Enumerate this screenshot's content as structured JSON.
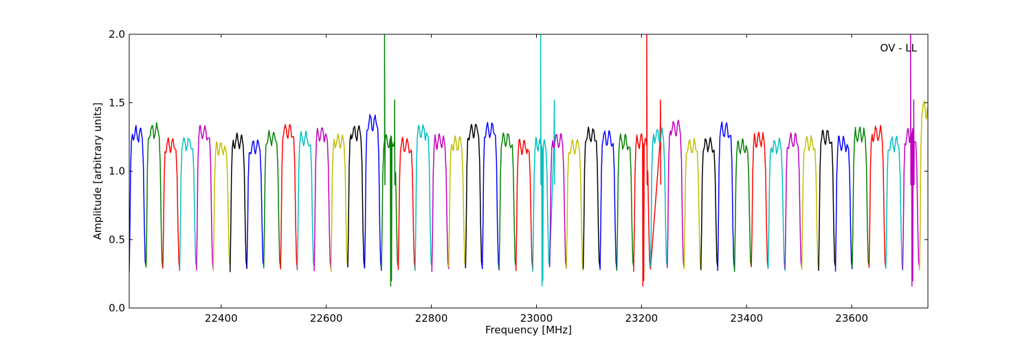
{
  "chart_data": {
    "type": "line",
    "title": "",
    "xlabel": "Frequency [MHz]",
    "ylabel": "Amplitude [arbitrary units]",
    "annotation": "OV - LL",
    "xlim": [
      22225,
      23745
    ],
    "ylim": [
      0.0,
      2.0
    ],
    "x_ticks": [
      22400,
      22600,
      22800,
      23000,
      23200,
      23400,
      23600
    ],
    "x_tick_labels": [
      "22400",
      "22600",
      "22800",
      "23000",
      "23200",
      "23400",
      "23600"
    ],
    "y_ticks": [
      0.0,
      0.5,
      1.0,
      1.5,
      2.0
    ],
    "y_tick_labels": [
      "0.0",
      "0.5",
      "1.0",
      "1.5",
      "2.0"
    ],
    "grid": false,
    "legend": "none",
    "color_cycle": [
      "#0000ff",
      "#008000",
      "#ff0000",
      "#00bfbf",
      "#bf00bf",
      "#bfbf00",
      "#000000"
    ],
    "band_width_mhz": 32,
    "bands": [
      {
        "start": 22225,
        "level": 1.27
      },
      {
        "start": 22257,
        "level": 1.29
      },
      {
        "start": 22289,
        "level": 1.19
      },
      {
        "start": 22321,
        "level": 1.2
      },
      {
        "start": 22353,
        "level": 1.28
      },
      {
        "start": 22385,
        "level": 1.17
      },
      {
        "start": 22417,
        "level": 1.22
      },
      {
        "start": 22449,
        "level": 1.18
      },
      {
        "start": 22481,
        "level": 1.24
      },
      {
        "start": 22513,
        "level": 1.29
      },
      {
        "start": 22545,
        "level": 1.23
      },
      {
        "start": 22577,
        "level": 1.27
      },
      {
        "start": 22609,
        "level": 1.22
      },
      {
        "start": 22641,
        "level": 1.28
      },
      {
        "start": 22673,
        "level": 1.35
      },
      {
        "start": 22705,
        "level": 1.21,
        "spikes": [
          {
            "x": 22711,
            "y": 2.0
          },
          {
            "x": 22730,
            "y": 1.52
          }
        ]
      },
      {
        "start": 22737,
        "level": 1.19
      },
      {
        "start": 22769,
        "level": 1.29
      },
      {
        "start": 22801,
        "level": 1.22
      },
      {
        "start": 22833,
        "level": 1.2
      },
      {
        "start": 22865,
        "level": 1.29
      },
      {
        "start": 22897,
        "level": 1.3
      },
      {
        "start": 22929,
        "level": 1.23
      },
      {
        "start": 22961,
        "level": 1.18
      },
      {
        "start": 22993,
        "level": 1.2,
        "spikes": [
          {
            "x": 23008,
            "y": 2.0
          },
          {
            "x": 23034,
            "y": 1.52
          }
        ]
      },
      {
        "start": 23025,
        "level": 1.22
      },
      {
        "start": 23057,
        "level": 1.18
      },
      {
        "start": 23089,
        "level": 1.26
      },
      {
        "start": 23121,
        "level": 1.24
      },
      {
        "start": 23153,
        "level": 1.21
      },
      {
        "start": 23185,
        "level": 1.22,
        "spikes": [
          {
            "x": 23210,
            "y": 2.0
          },
          {
            "x": 23236,
            "y": 1.52
          }
        ]
      },
      {
        "start": 23217,
        "level": 1.26
      },
      {
        "start": 23249,
        "level": 1.31
      },
      {
        "start": 23281,
        "level": 1.18
      },
      {
        "start": 23313,
        "level": 1.19
      },
      {
        "start": 23345,
        "level": 1.3
      },
      {
        "start": 23377,
        "level": 1.18
      },
      {
        "start": 23409,
        "level": 1.23
      },
      {
        "start": 23441,
        "level": 1.18
      },
      {
        "start": 23473,
        "level": 1.22
      },
      {
        "start": 23505,
        "level": 1.2
      },
      {
        "start": 23537,
        "level": 1.25
      },
      {
        "start": 23569,
        "level": 1.2
      },
      {
        "start": 23601,
        "level": 1.27
      },
      {
        "start": 23633,
        "level": 1.27
      },
      {
        "start": 23665,
        "level": 1.2
      },
      {
        "start": 23697,
        "level": 1.25,
        "spikes": [
          {
            "x": 23712,
            "y": 2.0
          },
          {
            "x": 23718,
            "y": 1.52
          }
        ]
      },
      {
        "start": 23729,
        "level": 1.45
      }
    ]
  }
}
